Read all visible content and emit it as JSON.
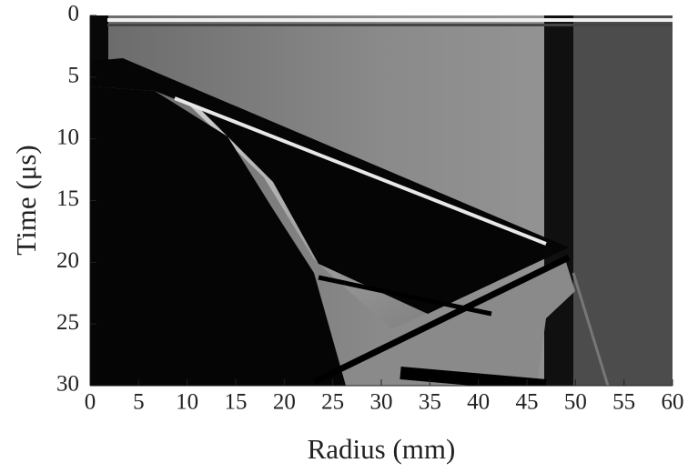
{
  "chart_data": {
    "type": "image",
    "xlabel": "Radius (mm)",
    "ylabel": "Time (μs)",
    "xlim": [
      0,
      60
    ],
    "xticks": [
      0,
      5,
      10,
      15,
      20,
      25,
      30,
      35,
      40,
      45,
      50,
      55,
      60
    ],
    "ylim": [
      0,
      30
    ],
    "yticks": [
      0,
      5,
      10,
      15,
      20,
      25,
      30
    ],
    "y_inverted": true
  }
}
